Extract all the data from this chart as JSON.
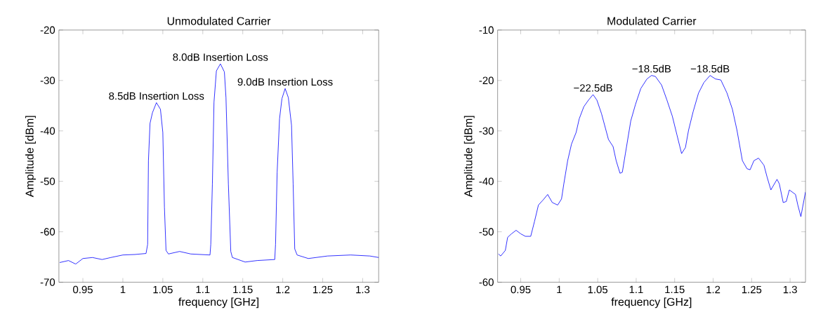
{
  "chart_data": [
    {
      "type": "line",
      "title": "Unmodulated Carrier",
      "xlabel": "frequency [GHz]",
      "ylabel": "Amplitude [dBm]",
      "xlim": [
        0.92,
        1.32
      ],
      "ylim": [
        -70,
        -20
      ],
      "xticks": [
        0.95,
        1,
        1.05,
        1.1,
        1.15,
        1.2,
        1.25,
        1.3
      ],
      "yticks": [
        -70,
        -60,
        -50,
        -40,
        -30,
        -20
      ],
      "series": [
        {
          "color": "#0000ff",
          "x": [
            0.921,
            0.932,
            0.941,
            0.95,
            0.962,
            0.974,
            0.985,
            1.0,
            1.015,
            1.029,
            1.031,
            1.032,
            1.034,
            1.037,
            1.042,
            1.047,
            1.05,
            1.052,
            1.054,
            1.057,
            1.071,
            1.085,
            1.109,
            1.11,
            1.112,
            1.114,
            1.117,
            1.122,
            1.127,
            1.129,
            1.132,
            1.135,
            1.137,
            1.153,
            1.168,
            1.19,
            1.191,
            1.193,
            1.196,
            1.199,
            1.203,
            1.207,
            1.211,
            1.213,
            1.215,
            1.218,
            1.232,
            1.256,
            1.285,
            1.309,
            1.32
          ],
          "values": [
            -66.1,
            -65.7,
            -66.4,
            -65.3,
            -65.1,
            -65.5,
            -65.1,
            -64.6,
            -64.5,
            -64.3,
            -62.5,
            -45.9,
            -38.5,
            -36.4,
            -34.4,
            -35.7,
            -40.3,
            -55.1,
            -63.7,
            -64.4,
            -63.9,
            -64.4,
            -64.6,
            -62.5,
            -50.5,
            -34.3,
            -28.1,
            -26.7,
            -28.3,
            -33.4,
            -50.5,
            -63.9,
            -65.1,
            -66.0,
            -65.7,
            -65.5,
            -62.5,
            -48.2,
            -37.6,
            -33.6,
            -31.6,
            -33.4,
            -38.9,
            -50.5,
            -63.4,
            -64.6,
            -65.3,
            -64.8,
            -64.6,
            -64.8,
            -65.1
          ]
        }
      ],
      "annotations": [
        {
          "text": "8.5dB Insertion Loss",
          "x": 1.042,
          "y": -34.4
        },
        {
          "text": "8.0dB Insertion Loss",
          "x": 1.122,
          "y": -26.7
        },
        {
          "text": "9.0dB Insertion Loss",
          "x": 1.203,
          "y": -31.6
        }
      ]
    },
    {
      "type": "line",
      "title": "Modulated Carrier",
      "xlabel": "frequency [GHz]",
      "ylabel": "Amplitude [dBm]",
      "xlim": [
        0.92,
        1.32
      ],
      "ylim": [
        -60,
        -10
      ],
      "xticks": [
        0.95,
        1,
        1.05,
        1.1,
        1.15,
        1.2,
        1.25,
        1.3
      ],
      "yticks": [
        -60,
        -50,
        -40,
        -30,
        -20,
        -10
      ],
      "series": [
        {
          "color": "#0000ff",
          "x": [
            0.921,
            0.924,
            0.93,
            0.933,
            0.938,
            0.944,
            0.95,
            0.956,
            0.963,
            0.968,
            0.973,
            0.979,
            0.985,
            0.991,
            0.998,
            1.003,
            1.006,
            1.011,
            1.016,
            1.022,
            1.026,
            1.032,
            1.038,
            1.044,
            1.049,
            1.055,
            1.064,
            1.07,
            1.074,
            1.079,
            1.082,
            1.086,
            1.093,
            1.099,
            1.106,
            1.114,
            1.12,
            1.125,
            1.133,
            1.14,
            1.147,
            1.153,
            1.159,
            1.164,
            1.168,
            1.174,
            1.181,
            1.188,
            1.196,
            1.203,
            1.21,
            1.218,
            1.225,
            1.231,
            1.238,
            1.244,
            1.248,
            1.253,
            1.259,
            1.266,
            1.27,
            1.275,
            1.283,
            1.286,
            1.291,
            1.295,
            1.299,
            1.307,
            1.31,
            1.314,
            1.318,
            1.32
          ],
          "values": [
            -54.4,
            -54.8,
            -53.7,
            -51.1,
            -50.4,
            -49.7,
            -50.4,
            -50.9,
            -50.9,
            -47.9,
            -44.7,
            -43.7,
            -42.6,
            -44.2,
            -44.7,
            -43.5,
            -40.5,
            -35.9,
            -32.6,
            -30.3,
            -27.6,
            -25.2,
            -23.9,
            -22.8,
            -23.9,
            -26.6,
            -31.7,
            -33.1,
            -35.9,
            -38.4,
            -38.2,
            -34.5,
            -28.0,
            -24.8,
            -21.6,
            -19.7,
            -19.0,
            -19.2,
            -20.9,
            -23.9,
            -27.1,
            -30.8,
            -34.5,
            -33.3,
            -29.9,
            -26.2,
            -22.5,
            -20.4,
            -19.0,
            -19.7,
            -19.9,
            -22.5,
            -25.7,
            -29.9,
            -35.9,
            -37.5,
            -37.7,
            -35.9,
            -35.4,
            -36.8,
            -39.1,
            -41.7,
            -39.6,
            -40.5,
            -44.2,
            -44.0,
            -41.7,
            -42.6,
            -44.7,
            -47.0,
            -43.7,
            -42.1
          ]
        }
      ],
      "annotations": [
        {
          "text": "−22.5dB",
          "x": 1.044,
          "y": -22.8
        },
        {
          "text": "−18.5dB",
          "x": 1.12,
          "y": -19.0
        },
        {
          "text": "−18.5dB",
          "x": 1.196,
          "y": -19.0
        }
      ]
    }
  ]
}
